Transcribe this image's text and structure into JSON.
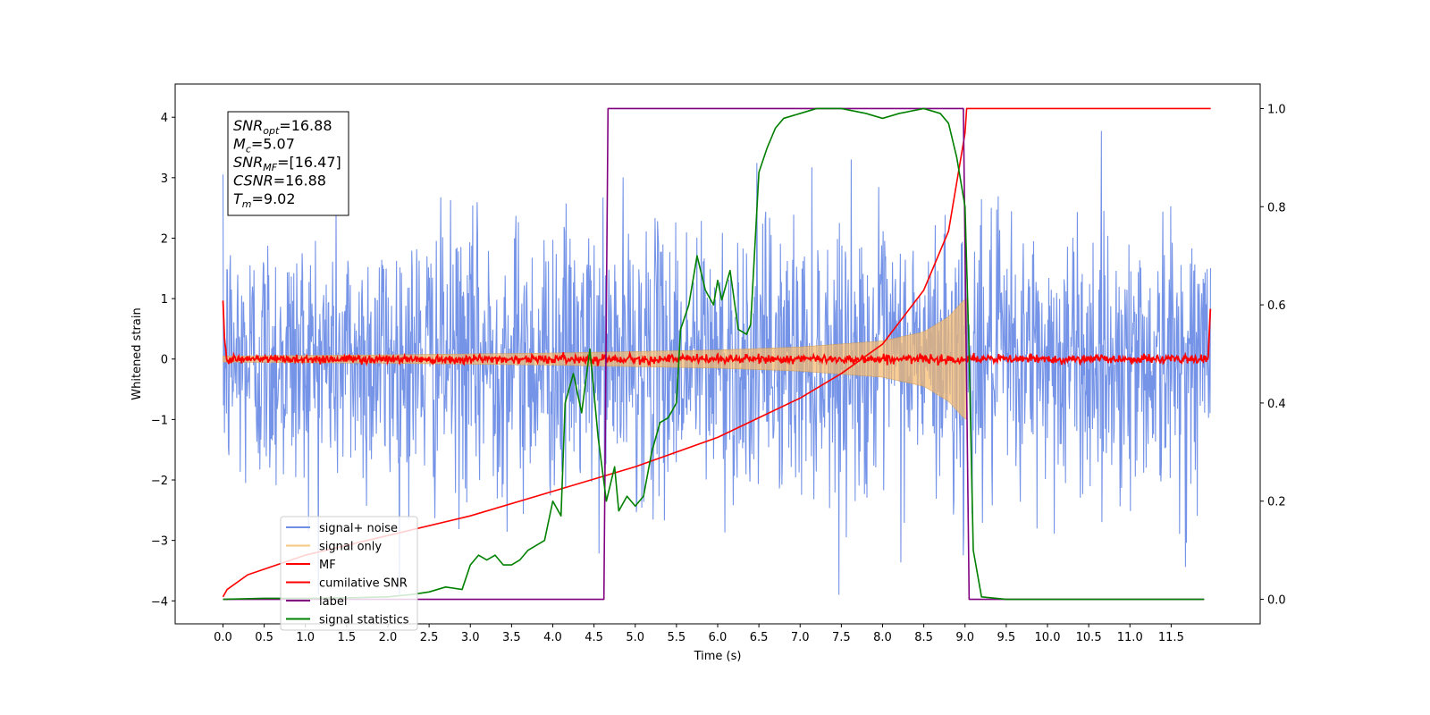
{
  "chart_data": {
    "type": "line",
    "xlabel": "Time (s)",
    "ylabel": "Whitened strain",
    "xlim": [
      -0.58,
      12.58
    ],
    "ylim": [
      -4.38,
      4.55
    ],
    "y2lim": [
      -0.05,
      1.05
    ],
    "xticks": [
      0.0,
      0.5,
      1.0,
      1.5,
      2.0,
      2.5,
      3.0,
      3.5,
      4.0,
      4.5,
      5.0,
      5.5,
      6.0,
      6.5,
      7.0,
      7.5,
      8.0,
      8.5,
      9.0,
      9.5,
      10.0,
      10.5,
      11.0,
      11.5
    ],
    "xtick_labels": [
      "0.0",
      "0.5",
      "1.0",
      "1.5",
      "2.0",
      "2.5",
      "3.0",
      "3.5",
      "4.0",
      "4.5",
      "5.0",
      "5.5",
      "6.0",
      "6.5",
      "7.0",
      "7.5",
      "8.0",
      "8.5",
      "9.0",
      "9.5",
      "10.0",
      "10.5",
      "11.0",
      "11.5"
    ],
    "yticks": [
      -4,
      -3,
      -2,
      -1,
      0,
      1,
      2,
      3,
      4
    ],
    "ytick_labels": [
      "−4",
      "−3",
      "−2",
      "−1",
      "0",
      "1",
      "2",
      "3",
      "4"
    ],
    "y2ticks": [
      0.0,
      0.2,
      0.4,
      0.6,
      0.8,
      1.0
    ],
    "y2tick_labels": [
      "0.0",
      "0.2",
      "0.4",
      "0.6",
      "0.8",
      "1.0"
    ],
    "legend_position": "lower-left",
    "series": [
      {
        "name": "signal+ noise",
        "color": "#6f8ee6",
        "axis": "left",
        "kind": "noise",
        "x_range": [
          0.0,
          11.98
        ],
        "amplitude_std": 1.1
      },
      {
        "name": "signal only",
        "color": "#f5b86a",
        "axis": "left",
        "kind": "chirp",
        "x_range": [
          0.0,
          9.02
        ],
        "envelope": [
          [
            0.0,
            0.05
          ],
          [
            2.0,
            0.07
          ],
          [
            4.0,
            0.1
          ],
          [
            6.0,
            0.15
          ],
          [
            7.0,
            0.2
          ],
          [
            8.0,
            0.3
          ],
          [
            8.5,
            0.45
          ],
          [
            8.8,
            0.7
          ],
          [
            9.0,
            1.0
          ]
        ]
      },
      {
        "name": "MF",
        "color": "#ff0000",
        "axis": "left",
        "kind": "mf",
        "x_range": [
          0.0,
          11.98
        ],
        "points": [
          [
            0.0,
            1.0
          ],
          [
            0.02,
            0.3
          ],
          [
            0.05,
            0.0
          ],
          [
            11.95,
            0.0
          ],
          [
            11.98,
            0.95
          ]
        ]
      },
      {
        "name": "cumilative SNR",
        "color": "#ff0000",
        "axis": "right",
        "points": [
          [
            0.0,
            0.005
          ],
          [
            0.05,
            0.02
          ],
          [
            0.3,
            0.05
          ],
          [
            1.0,
            0.09
          ],
          [
            2.0,
            0.13
          ],
          [
            3.0,
            0.17
          ],
          [
            4.0,
            0.22
          ],
          [
            5.0,
            0.27
          ],
          [
            6.0,
            0.33
          ],
          [
            6.5,
            0.37
          ],
          [
            7.0,
            0.41
          ],
          [
            7.5,
            0.46
          ],
          [
            8.0,
            0.52
          ],
          [
            8.5,
            0.63
          ],
          [
            8.8,
            0.75
          ],
          [
            9.0,
            0.95
          ],
          [
            9.02,
            1.0
          ],
          [
            11.98,
            1.0
          ]
        ]
      },
      {
        "name": "label",
        "color": "#800080",
        "axis": "right",
        "points": [
          [
            0.0,
            0.0
          ],
          [
            4.62,
            0.0
          ],
          [
            4.67,
            1.0
          ],
          [
            8.98,
            1.0
          ],
          [
            9.05,
            0.0
          ],
          [
            11.9,
            0.0
          ]
        ]
      },
      {
        "name": "signal statistics",
        "color": "#008000",
        "axis": "right",
        "points": [
          [
            0.0,
            0.0
          ],
          [
            0.5,
            0.002
          ],
          [
            1.0,
            0.002
          ],
          [
            1.5,
            0.003
          ],
          [
            2.0,
            0.005
          ],
          [
            2.3,
            0.01
          ],
          [
            2.5,
            0.015
          ],
          [
            2.7,
            0.025
          ],
          [
            2.9,
            0.02
          ],
          [
            3.0,
            0.07
          ],
          [
            3.1,
            0.09
          ],
          [
            3.2,
            0.08
          ],
          [
            3.3,
            0.09
          ],
          [
            3.4,
            0.07
          ],
          [
            3.5,
            0.07
          ],
          [
            3.6,
            0.08
          ],
          [
            3.7,
            0.1
          ],
          [
            3.8,
            0.11
          ],
          [
            3.9,
            0.12
          ],
          [
            4.0,
            0.2
          ],
          [
            4.1,
            0.17
          ],
          [
            4.15,
            0.4
          ],
          [
            4.25,
            0.46
          ],
          [
            4.35,
            0.38
          ],
          [
            4.45,
            0.51
          ],
          [
            4.55,
            0.33
          ],
          [
            4.65,
            0.2
          ],
          [
            4.75,
            0.27
          ],
          [
            4.8,
            0.18
          ],
          [
            4.9,
            0.21
          ],
          [
            5.0,
            0.19
          ],
          [
            5.1,
            0.21
          ],
          [
            5.2,
            0.3
          ],
          [
            5.3,
            0.36
          ],
          [
            5.4,
            0.37
          ],
          [
            5.5,
            0.4
          ],
          [
            5.55,
            0.55
          ],
          [
            5.65,
            0.6
          ],
          [
            5.75,
            0.7
          ],
          [
            5.85,
            0.63
          ],
          [
            5.95,
            0.6
          ],
          [
            6.0,
            0.65
          ],
          [
            6.05,
            0.61
          ],
          [
            6.15,
            0.67
          ],
          [
            6.25,
            0.55
          ],
          [
            6.35,
            0.54
          ],
          [
            6.4,
            0.56
          ],
          [
            6.5,
            0.87
          ],
          [
            6.6,
            0.92
          ],
          [
            6.7,
            0.96
          ],
          [
            6.8,
            0.98
          ],
          [
            7.0,
            0.99
          ],
          [
            7.2,
            1.0
          ],
          [
            7.5,
            1.0
          ],
          [
            7.8,
            0.99
          ],
          [
            8.0,
            0.98
          ],
          [
            8.2,
            0.99
          ],
          [
            8.5,
            1.0
          ],
          [
            8.7,
            0.99
          ],
          [
            8.8,
            0.97
          ],
          [
            8.9,
            0.9
          ],
          [
            9.0,
            0.8
          ],
          [
            9.05,
            0.5
          ],
          [
            9.1,
            0.1
          ],
          [
            9.2,
            0.005
          ],
          [
            9.5,
            0.0
          ],
          [
            11.9,
            0.0
          ]
        ]
      }
    ],
    "annotation": {
      "lines": [
        {
          "sym": "SNR",
          "sub": "opt",
          "rest": "=16.88"
        },
        {
          "sym": "M",
          "sub": "c",
          "rest": "=5.07"
        },
        {
          "sym": "SNR",
          "sub": "MF",
          "rest": "=[16.47]"
        },
        {
          "sym": "CSNR",
          "sub": "",
          "rest": "=16.88"
        },
        {
          "sym": "T",
          "sub": "m",
          "rest": "=9.02"
        }
      ]
    }
  }
}
